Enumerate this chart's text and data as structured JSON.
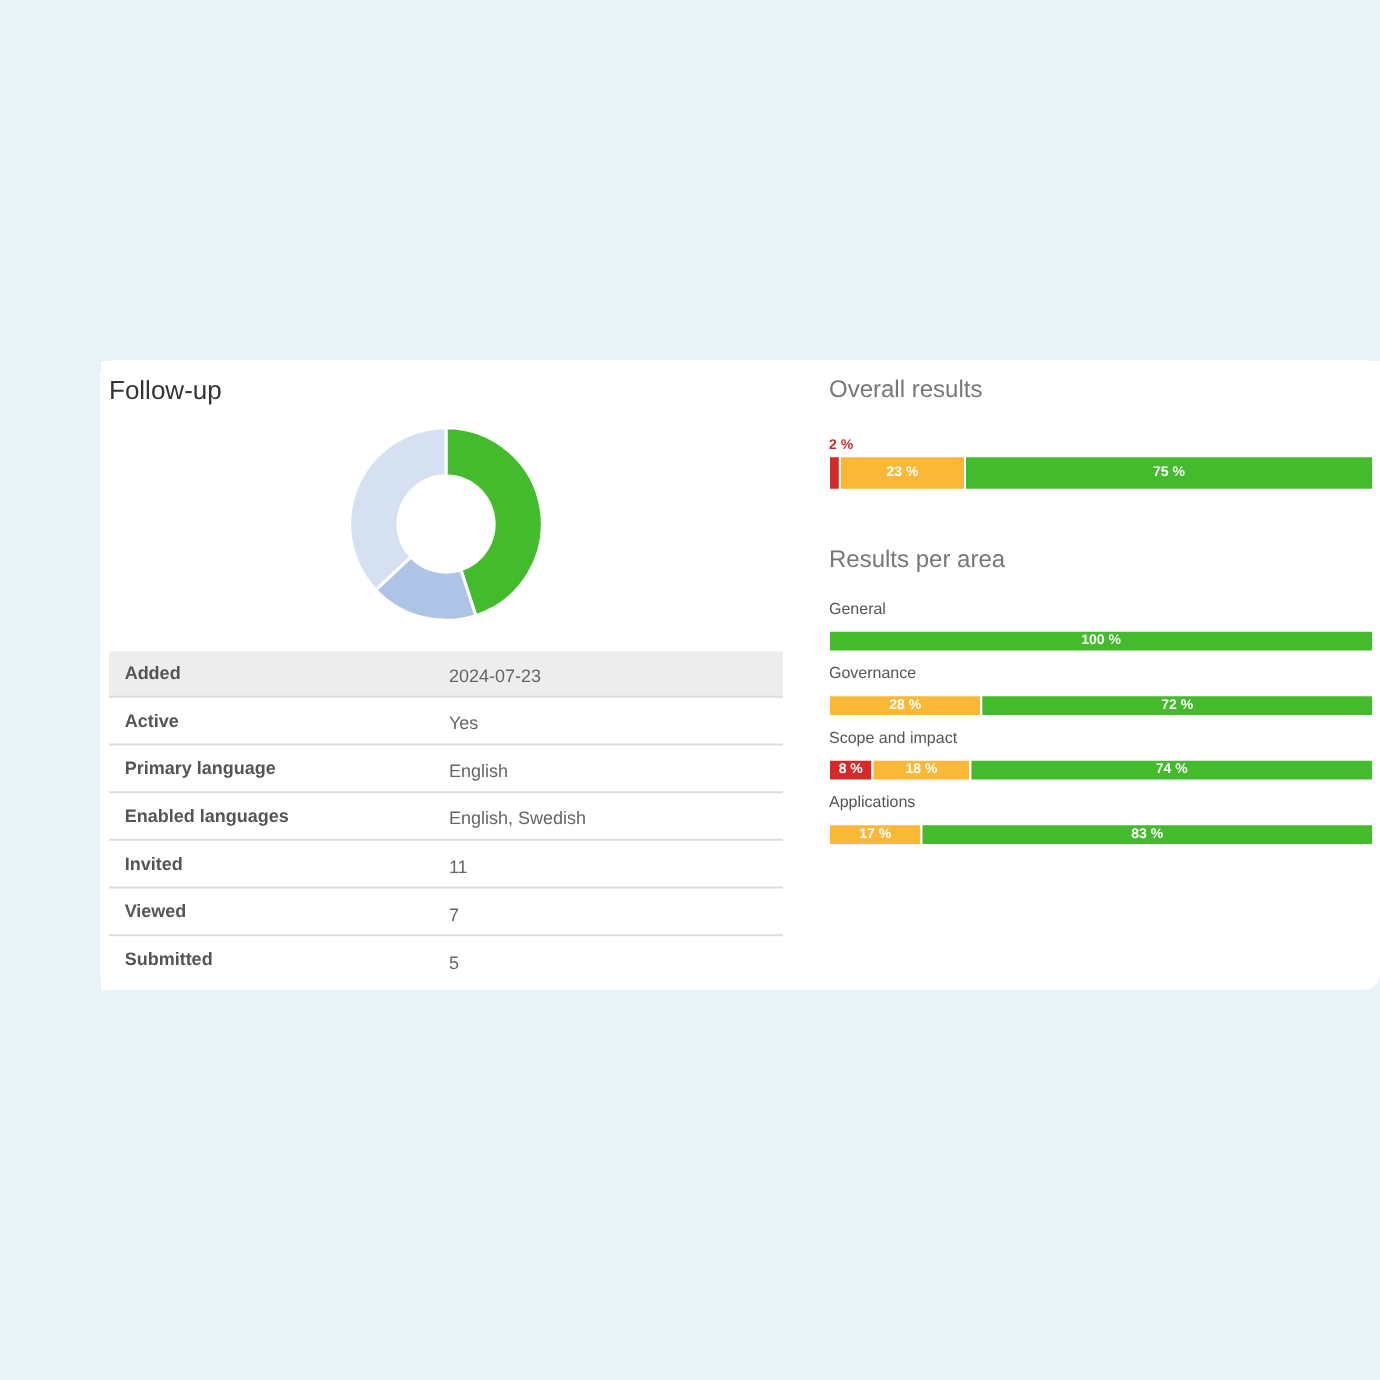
{
  "chart_data": [
    {
      "type": "donut",
      "title": "Follow-up",
      "categories": [
        null,
        null,
        null
      ],
      "values": [
        45,
        18,
        37
      ],
      "colors": [
        "#43bb2c",
        "#adc4e6",
        "#d5e1f1"
      ]
    },
    {
      "type": "other",
      "categories": [
        "Added",
        "Active",
        "Primary language",
        "Enabled languages",
        "Invited",
        "Viewed",
        "Submitted"
      ],
      "value_labels": [
        "2024-07-23",
        "Yes",
        "English",
        "English, Swedish",
        "11",
        "7",
        "5"
      ]
    },
    {
      "type": "bar",
      "title": "Overall results",
      "orientation": "horizontal",
      "stacked": true,
      "categories": [
        null
      ],
      "xlim": [
        0,
        100
      ],
      "series": [
        {
          "color": "#d42a2a",
          "values": [
            2
          ],
          "value_labels": [
            "2 %"
          ]
        },
        {
          "color": "#fbb836",
          "values": [
            23
          ],
          "value_labels": [
            "23 %"
          ]
        },
        {
          "color": "#43bb2c",
          "values": [
            75
          ],
          "value_labels": [
            "75 %"
          ]
        }
      ]
    },
    {
      "type": "bar",
      "title": "Results per area",
      "orientation": "horizontal",
      "stacked": true,
      "categories": [
        "General",
        "Governance",
        "Scope and impact",
        "Applications"
      ],
      "xlim": [
        0,
        100
      ],
      "series": [
        {
          "color": "#d42a2a",
          "values": [
            null,
            null,
            8,
            null
          ],
          "value_labels": [
            null,
            null,
            "8 %",
            null
          ]
        },
        {
          "color": "#fbb836",
          "values": [
            null,
            28,
            18,
            17
          ],
          "value_labels": [
            null,
            "28 %",
            "18 %",
            "17 %"
          ]
        },
        {
          "color": "#43bb2c",
          "values": [
            100,
            72,
            74,
            83
          ],
          "value_labels": [
            "100 %",
            "72 %",
            "74 %",
            "83 %"
          ]
        }
      ]
    }
  ]
}
